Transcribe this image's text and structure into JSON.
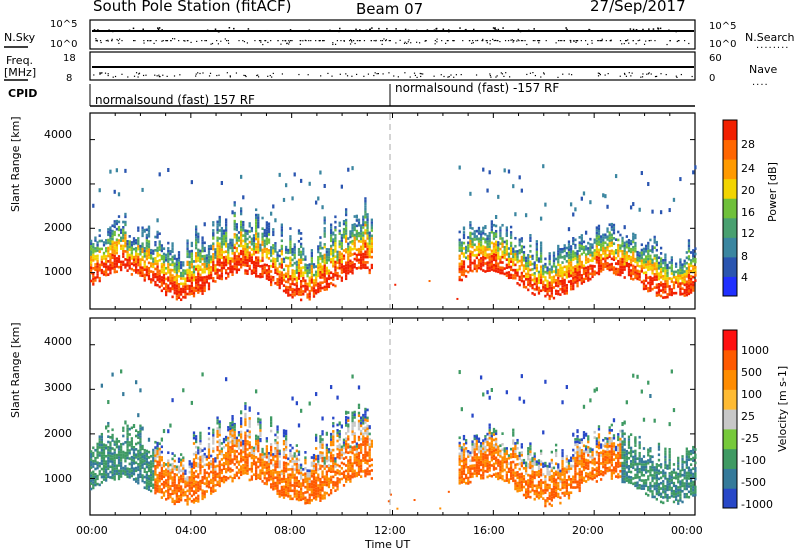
{
  "header": {
    "station": "South Pole Station (fitACF)",
    "beam": "Beam 07",
    "date": "27/Sep/2017"
  },
  "top_panels": {
    "nsky_label": "N.Sky",
    "nsky_ticks": [
      "10^5",
      "10^0"
    ],
    "nsearch_label": "N.Search",
    "nsearch_ticks": [
      "10^5",
      "10^0"
    ],
    "freq_label_1": "Freq.",
    "freq_label_2": "[MHz]",
    "freq_ticks": [
      "18",
      "8"
    ],
    "nave_label": "Nave",
    "nave_ticks": [
      "60",
      "0"
    ],
    "cpid_label": "CPID",
    "cpid_segments": [
      "normalsound (fast) 157 RF",
      "normalsound (fast) -157 RF"
    ]
  },
  "colors": {
    "power_scale": [
      "#2030ff",
      "#2a55b0",
      "#3b86a0",
      "#49a070",
      "#6fc03a",
      "#f2d400",
      "#ff9a00",
      "#ff6600",
      "#f22000"
    ],
    "velocity_scale": [
      "#ff1010",
      "#ff5a00",
      "#ff8c00",
      "#ffbb33",
      "#c8c8c8",
      "#76c93a",
      "#3f9a63",
      "#357a9a",
      "#2848c8"
    ]
  },
  "chart_data": [
    {
      "type": "heatmap",
      "title": "",
      "ylabel": "Slant Range [km]",
      "xlabel": "",
      "ylim": [
        180,
        4600
      ],
      "yticks": [
        "4000",
        "3000",
        "2000",
        "1000"
      ],
      "xticks": [
        "00:00",
        "04:00",
        "08:00",
        "12:00",
        "16:00",
        "20:00",
        "00:00"
      ],
      "colorbar": {
        "label": "Power [dB]",
        "ticks": [
          "28",
          "24",
          "20",
          "16",
          "12",
          "8",
          "4"
        ]
      },
      "dominant_echo_band_km": [
        600,
        1800
      ],
      "gap_hours_ut": [
        12,
        14
      ]
    },
    {
      "type": "heatmap",
      "title": "",
      "ylabel": "Slant Range [km]",
      "xlabel": "Time UT",
      "ylim": [
        180,
        4600
      ],
      "yticks": [
        "4000",
        "3000",
        "2000",
        "1000"
      ],
      "xticks": [
        "00:00",
        "04:00",
        "08:00",
        "12:00",
        "16:00",
        "20:00",
        "00:00"
      ],
      "colorbar": {
        "label": "Velocity [m s-1]",
        "ticks": [
          "1000",
          "500",
          "100",
          "25",
          "-25",
          "-100",
          "-500",
          "-1000"
        ]
      },
      "dominant_echo_band_km": [
        600,
        1800
      ],
      "gap_hours_ut": [
        12,
        14
      ]
    }
  ]
}
